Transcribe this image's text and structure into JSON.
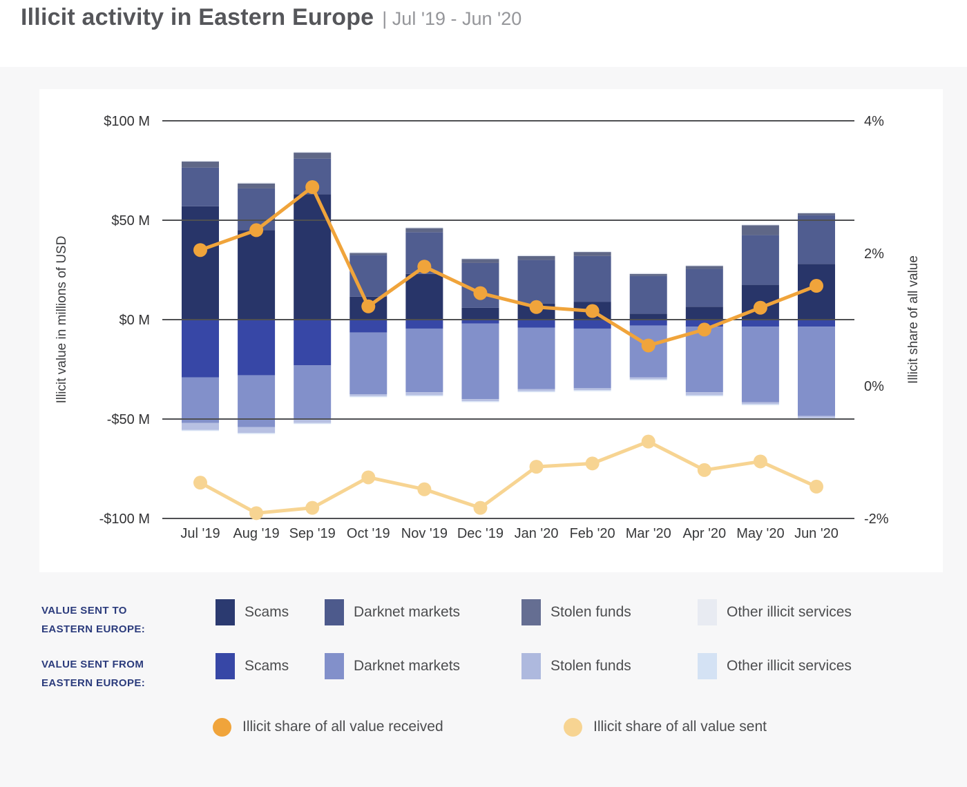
{
  "header": {
    "title": "Illicit activity in Eastern Europe",
    "subtitle": "| Jul '19 - Jun '20"
  },
  "chart_data": {
    "type": "bar",
    "subtype": "diverging-stacked-bar-with-lines",
    "title": "Illicit activity in Eastern Europe, Jul '19 - Jun '20",
    "categories": [
      "Jul '19",
      "Aug '19",
      "Sep '19",
      "Oct '19",
      "Nov '19",
      "Dec '19",
      "Jan '20",
      "Feb '20",
      "Mar '20",
      "Apr '20",
      "May '20",
      "Jun '20"
    ],
    "left_axis": {
      "title": "Illicit value in millions of USD",
      "tick_labels": [
        "$100 M",
        "$50 M",
        "$0 M",
        "-$50 M",
        "-$100 M"
      ],
      "tick_values": [
        100,
        50,
        0,
        -50,
        -100
      ],
      "range": [
        -100,
        100
      ],
      "grid": true
    },
    "right_axis": {
      "title": "Illicit share of all value",
      "tick_labels": [
        "4%",
        "2%",
        "0%",
        "-2%"
      ],
      "tick_values": [
        4,
        2,
        0,
        -2
      ],
      "range": [
        -2,
        4
      ],
      "grid": false
    },
    "bars_sent_to": {
      "group": "Value sent to Eastern Europe",
      "direction": "positive",
      "unit": "USD millions",
      "series": [
        {
          "name": "Scams",
          "color": "#283569",
          "values": [
            57,
            45,
            63,
            11.5,
            23,
            6,
            8,
            9,
            3,
            6.5,
            17.5,
            28
          ]
        },
        {
          "name": "Darknet markets",
          "color": "#505d90",
          "values": [
            19.5,
            21,
            18,
            21,
            21,
            22.5,
            22,
            23,
            19,
            19,
            25,
            24.5
          ]
        },
        {
          "name": "Stolen funds",
          "color": "#5f6787",
          "values": [
            3,
            2.5,
            3,
            1,
            2,
            2,
            2,
            2,
            1,
            1.5,
            5,
            1
          ]
        },
        {
          "name": "Other illicit services",
          "color": "#e8ecf4",
          "values": [
            0.5,
            0.5,
            0.5,
            0.5,
            0.5,
            0.5,
            0.5,
            0.5,
            0.5,
            0.5,
            0.5,
            0.5
          ]
        }
      ]
    },
    "bars_sent_from": {
      "group": "Value sent from Eastern Europe",
      "direction": "negative",
      "unit": "USD millions",
      "series": [
        {
          "name": "Scams",
          "color": "#3747a6",
          "values": [
            29,
            28,
            23,
            6.5,
            4.5,
            2,
            4,
            4.5,
            3,
            3.5,
            3.5,
            3.5
          ]
        },
        {
          "name": "Darknet markets",
          "color": "#8290ca",
          "values": [
            23,
            26,
            27,
            31,
            32,
            38,
            31,
            30,
            26,
            33,
            38,
            45
          ]
        },
        {
          "name": "Stolen funds",
          "color": "#b7c0e2",
          "values": [
            3.5,
            3,
            2,
            1,
            1.5,
            1,
            1,
            1,
            1,
            1.5,
            1,
            1
          ]
        },
        {
          "name": "Other illicit services",
          "color": "#d8e3f5",
          "values": [
            0.5,
            0.5,
            0.5,
            0.5,
            0.5,
            0.5,
            0.5,
            0.5,
            0.5,
            0.5,
            0.5,
            0.5
          ]
        }
      ]
    },
    "lines": [
      {
        "name": "Illicit share of all value received",
        "color": "#f0a43b",
        "axis": "right",
        "unit": "%",
        "values": [
          2.05,
          2.35,
          3.0,
          1.2,
          1.8,
          1.4,
          1.19,
          1.13,
          0.61,
          0.85,
          1.18,
          1.51
        ]
      },
      {
        "name": "Illicit share of all value sent",
        "color": "#f7d492",
        "axis": "right",
        "unit": "%",
        "values": [
          -1.46,
          -1.92,
          -1.84,
          -1.38,
          -1.56,
          -1.84,
          -1.22,
          -1.17,
          -0.84,
          -1.27,
          -1.14,
          -1.52
        ]
      }
    ],
    "legend_position": "bottom"
  },
  "legend": {
    "row_to": {
      "heading_line1": "VALUE SENT TO",
      "heading_line2": "EASTERN EUROPE:",
      "items": [
        {
          "label": "Scams",
          "color": "#2b3a70"
        },
        {
          "label": "Darknet markets",
          "color": "#4d5a8c"
        },
        {
          "label": "Stolen funds",
          "color": "#656e92"
        },
        {
          "label": "Other illicit services",
          "color": "#e8ebf2"
        }
      ]
    },
    "row_from": {
      "heading_line1": "VALUE SENT FROM",
      "heading_line2": "EASTERN EUROPE:",
      "items": [
        {
          "label": "Scams",
          "color": "#3747a6"
        },
        {
          "label": "Darknet markets",
          "color": "#8290ca"
        },
        {
          "label": "Stolen funds",
          "color": "#aeb9de"
        },
        {
          "label": "Other illicit services",
          "color": "#d4e2f4"
        }
      ]
    },
    "row_lines": {
      "items": [
        {
          "label": "Illicit share of all value received",
          "color": "#f0a43b"
        },
        {
          "label": "Illicit share of all value sent",
          "color": "#f7d492"
        }
      ]
    }
  }
}
